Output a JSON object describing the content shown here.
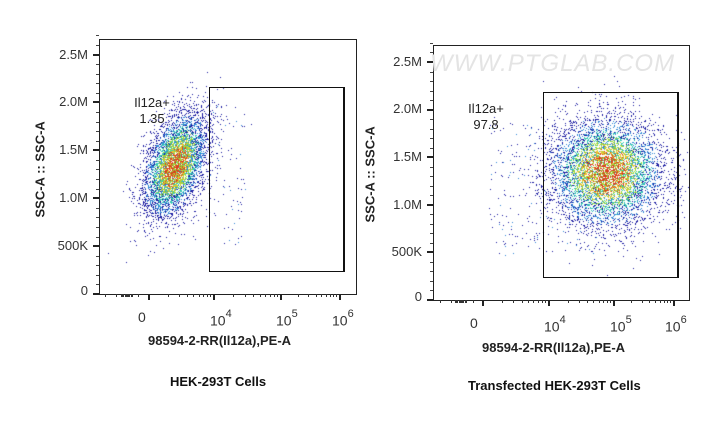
{
  "watermark": "WWW.PTGLAB.COM",
  "colors": {
    "low": "#1a1aa0",
    "mid_low": "#2f86d6",
    "mid": "#35c9b4",
    "mid_high": "#9ad83a",
    "high": "#e9c531",
    "peak": "#d9401f",
    "axis": "#222222"
  },
  "chart_data": [
    {
      "type": "scatter",
      "subtype": "flow-cytometry-density-dotplot",
      "title": "HEK-293T Cells",
      "xlabel": "98594-2-RR(Il12a),PE-A",
      "ylabel": "SSC-A :: SSC-A",
      "x_scale": "biexponential",
      "x_tick_labels": [
        "0",
        "10^4",
        "10^5",
        "10^6"
      ],
      "y_tick_labels": [
        "0",
        "500K",
        "1.0M",
        "1.5M",
        "2.0M",
        "2.5M"
      ],
      "ylim": [
        0,
        2650000
      ],
      "gate": {
        "name": "Il12a+",
        "percent": 1.35,
        "x_range": [
          "~8x10^3",
          "~1.1x10^6"
        ],
        "y_range": [
          250000,
          2170000
        ]
      },
      "population": {
        "x_center": "~2x10^3",
        "y_center": 1200000,
        "y_spread": [
          600000,
          1850000
        ],
        "description": "Main population left of gate (negative)"
      }
    },
    {
      "type": "scatter",
      "subtype": "flow-cytometry-density-dotplot",
      "title": "Transfected HEK-293T Cells",
      "xlabel": "98594-2-RR(Il12a),PE-A",
      "ylabel": "SSC-A :: SSC-A",
      "x_scale": "biexponential",
      "x_tick_labels": [
        "0",
        "10^4",
        "10^5",
        "10^6"
      ],
      "y_tick_labels": [
        "0",
        "500K",
        "1.0M",
        "1.5M",
        "2.0M",
        "2.5M"
      ],
      "ylim": [
        0,
        2650000
      ],
      "gate": {
        "name": "Il12a+",
        "percent": 97.8,
        "x_range": [
          "~8x10^3",
          "~1.1x10^6"
        ],
        "y_range": [
          250000,
          2170000
        ]
      },
      "population": {
        "x_center": "~8x10^4",
        "y_center": 1250000,
        "y_spread": [
          720000,
          1970000
        ],
        "description": "Main population inside gate (positive)"
      }
    }
  ],
  "panels": [
    {
      "caption": "HEK-293T Cells",
      "gate_name": "Il12a+",
      "gate_value": "1.35",
      "ylabel": "SSC-A :: SSC-A",
      "xlabel": "98594-2-RR(Il12a),PE-A",
      "yticks": [
        "2.5M",
        "2.0M",
        "1.5M",
        "1.0M",
        "500K",
        "0"
      ],
      "xticks": {
        "zero": "0",
        "e4": "4",
        "e5": "5",
        "e6": "6",
        "base": "10"
      }
    },
    {
      "caption": "Transfected HEK-293T Cells",
      "gate_name": "Il12a+",
      "gate_value": "97.8",
      "ylabel": "SSC-A :: SSC-A",
      "xlabel": "98594-2-RR(Il12a),PE-A",
      "yticks": [
        "2.5M",
        "2.0M",
        "1.5M",
        "1.0M",
        "500K",
        "0"
      ],
      "xticks": {
        "zero": "0",
        "e4": "4",
        "e5": "5",
        "e6": "6",
        "base": "10"
      }
    }
  ]
}
